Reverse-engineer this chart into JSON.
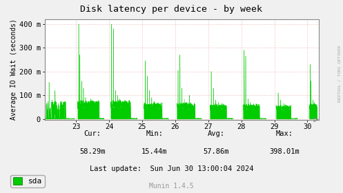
{
  "title": "Disk latency per device - by week",
  "ylabel": "Average IO Wait (seconds)",
  "bg_color": "#f0f0f0",
  "plot_bg_color": "#ffffff",
  "grid_color": "#e8a0a0",
  "line_color": "#00cc00",
  "fill_color": "#00cc00",
  "spine_color": "#888888",
  "ytick_labels": [
    "0",
    "100 m",
    "200 m",
    "300 m",
    "400 m"
  ],
  "ytick_values": [
    0,
    100,
    200,
    300,
    400
  ],
  "xtick_values": [
    23,
    24,
    25,
    26,
    27,
    28,
    29,
    30
  ],
  "xtick_labels": [
    "23",
    "24",
    "25",
    "26",
    "27",
    "28",
    "29",
    "30"
  ],
  "ymax": 420,
  "xmin": 22.05,
  "xmax": 30.35,
  "legend_label": "sda",
  "munin_version": "Munin 1.4.5",
  "watermark": "RRDTOOL / TOBI OETIKER",
  "title_color": "#000000",
  "text_color": "#000000",
  "munin_color": "#999999",
  "cur_label": "Cur:",
  "cur_val": "58.29m",
  "min_label": "Min:",
  "min_val": "15.44m",
  "avg_label": "Avg:",
  "avg_val": "57.86m",
  "max_label": "Max:",
  "max_val": "398.01m",
  "last_update": "Last update:  Sun Jun 30 13:00:04 2024"
}
